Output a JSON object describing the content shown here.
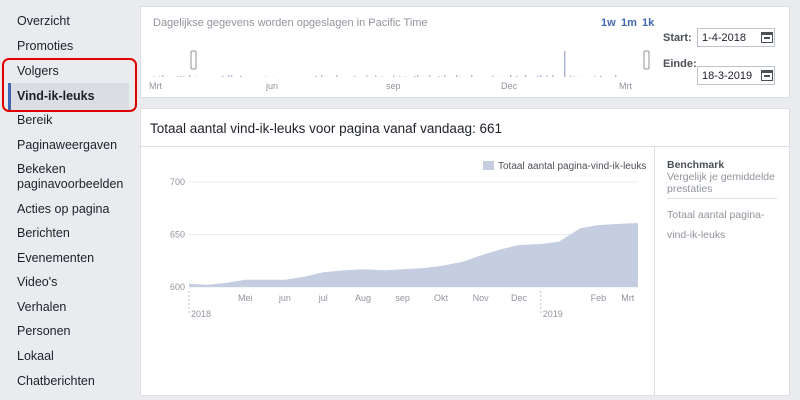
{
  "sidebar": {
    "items": [
      {
        "label": "Overzicht"
      },
      {
        "label": "Promoties"
      },
      {
        "label": "Volgers"
      },
      {
        "label": "Vind-ik-leuks"
      },
      {
        "label": "Bereik"
      },
      {
        "label": "Paginaweergaven"
      },
      {
        "label": "Bekeken paginavoorbeelden"
      },
      {
        "label": "Acties op pagina"
      },
      {
        "label": "Berichten"
      },
      {
        "label": "Evenementen"
      },
      {
        "label": "Video's"
      },
      {
        "label": "Verhalen"
      },
      {
        "label": "Personen"
      },
      {
        "label": "Lokaal"
      },
      {
        "label": "Chatberichten"
      }
    ],
    "active_label": "Vind-ik-leuks"
  },
  "range_panel": {
    "timezone_note": "Dagelijkse gegevens worden opgeslagen in Pacific Time",
    "periods": [
      "1w",
      "1m",
      "1k"
    ],
    "start_label": "Start:",
    "start_value": "1-4-2018",
    "end_label": "Einde:",
    "end_value": "18-3-2019",
    "month_labels": [
      "Mrt",
      "jun",
      "sep",
      "Dec",
      "Mrt"
    ]
  },
  "main": {
    "title": "Totaal aantal vind-ik-leuks voor pagina vanaf vandaag: 661",
    "benchmark": {
      "title": "Benchmark",
      "subtitle": "Vergelijk je gemiddelde prestaties",
      "metric": "Totaal aantal pagina-vind-ik-leuks"
    }
  },
  "chart_data": {
    "type": "area",
    "legend": "Totaal aantal pagina-vind-ik-leuks",
    "legend_position": "top-right",
    "color": "#c5cde0",
    "ylim": [
      600,
      700
    ],
    "yticks": [
      600,
      650,
      700
    ],
    "x_labels": [
      "Mei",
      "jun",
      "jul",
      "Aug",
      "sep",
      "Okt",
      "Nov",
      "Dec",
      "Feb",
      "Mrt"
    ],
    "year_labels": [
      "2018",
      "2019"
    ],
    "x": [
      "1-4-2018",
      "15-4-2018",
      "1-5-2018",
      "15-5-2018",
      "1-6-2018",
      "15-6-2018",
      "1-7-2018",
      "15-7-2018",
      "1-8-2018",
      "15-8-2018",
      "1-9-2018",
      "15-9-2018",
      "1-10-2018",
      "15-10-2018",
      "1-11-2018",
      "15-11-2018",
      "1-12-2018",
      "15-12-2018",
      "1-1-2019",
      "15-1-2019",
      "1-2-2019",
      "15-2-2019",
      "1-3-2019",
      "18-3-2019"
    ],
    "values": [
      603,
      602,
      604,
      607,
      607,
      607,
      610,
      614,
      616,
      617,
      616,
      617,
      618,
      620,
      624,
      630,
      636,
      640,
      641,
      643,
      656,
      659,
      660,
      661
    ]
  }
}
